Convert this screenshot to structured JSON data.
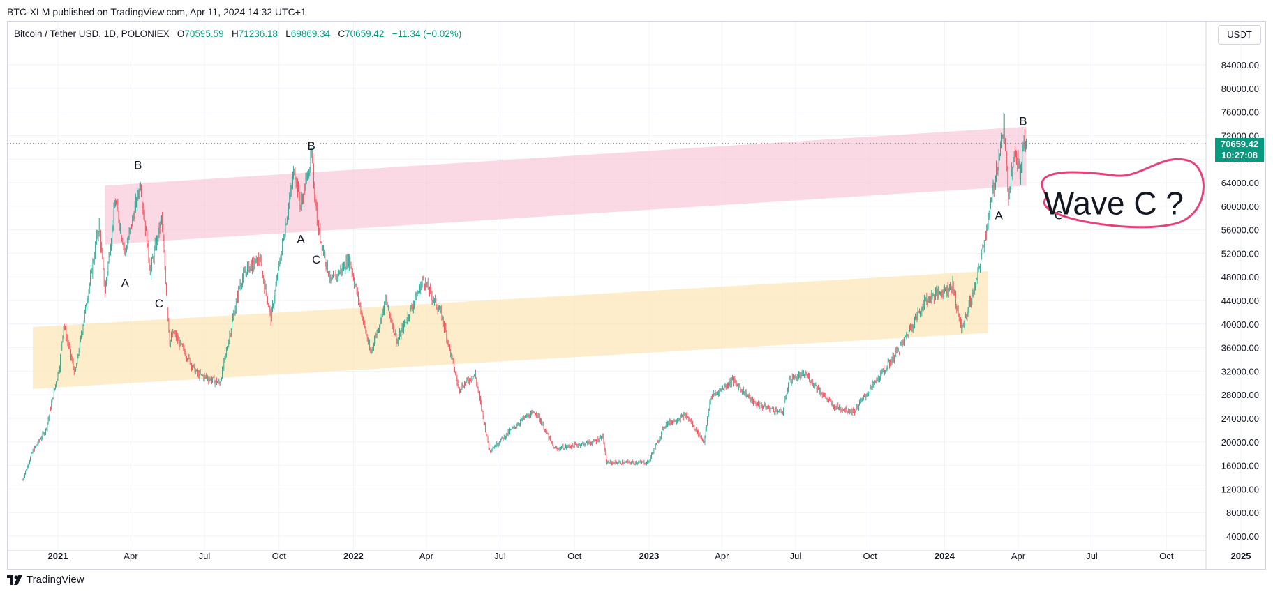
{
  "header": {
    "published": "BTC-XLM published on TradingView.com, Apr 11, 2024 14:32 UTC+1"
  },
  "symbol": {
    "name": "Bitcoin / Tether USD, 1D, POLONIEX",
    "open_label": "O",
    "open": "70595.59",
    "high_label": "H",
    "high": "71236.18",
    "low_label": "L",
    "low": "69869.34",
    "close_label": "C",
    "close": "70659.42",
    "change": "−11.34 (−0.02%)"
  },
  "currency_button": "USDT",
  "price_tag": {
    "price": "70659.42",
    "countdown": "10:27:08"
  },
  "footer": {
    "brand": "TradingView"
  },
  "colors": {
    "up": "#089981",
    "down": "#f23645",
    "pink_channel": "#f8c8d8",
    "orange_channel": "#fde5b5",
    "marker": "#e8407a",
    "price_line": "#089981"
  },
  "chart_data": {
    "type": "candlestick",
    "title": "Bitcoin / Tether USD, 1D, POLONIEX",
    "ylabel": "USDT",
    "ylim": [
      2000,
      88000
    ],
    "y_ticks": [
      "84000.00",
      "80000.00",
      "76000.00",
      "72000.00",
      "68000.00",
      "64000.00",
      "60000.00",
      "56000.00",
      "52000.00",
      "48000.00",
      "44000.00",
      "40000.00",
      "36000.00",
      "32000.00",
      "28000.00",
      "24000.00",
      "20000.00",
      "16000.00",
      "12000.00",
      "8000.00",
      "4000.00"
    ],
    "x_ticks": [
      {
        "label": "2021",
        "date": "2021-01-01",
        "bold": true
      },
      {
        "label": "Apr",
        "date": "2021-04-01"
      },
      {
        "label": "Jul",
        "date": "2021-07-01"
      },
      {
        "label": "Oct",
        "date": "2021-10-01"
      },
      {
        "label": "2022",
        "date": "2022-01-01",
        "bold": true
      },
      {
        "label": "Apr",
        "date": "2022-04-01"
      },
      {
        "label": "Jul",
        "date": "2022-07-01"
      },
      {
        "label": "Oct",
        "date": "2022-10-01"
      },
      {
        "label": "2023",
        "date": "2023-01-01",
        "bold": true
      },
      {
        "label": "Apr",
        "date": "2023-04-01"
      },
      {
        "label": "Jul",
        "date": "2023-07-01"
      },
      {
        "label": "Oct",
        "date": "2023-10-01"
      },
      {
        "label": "2024",
        "date": "2024-01-01",
        "bold": true
      },
      {
        "label": "Apr",
        "date": "2024-04-01"
      },
      {
        "label": "Jul",
        "date": "2024-07-01"
      },
      {
        "label": "Oct",
        "date": "2024-10-01"
      },
      {
        "label": "2025",
        "date": "2025-01-01",
        "bold": true
      }
    ],
    "last_price": 70659.42,
    "price_series": [
      [
        "2020-11-18",
        13500
      ],
      [
        "2020-12-01",
        18500
      ],
      [
        "2020-12-17",
        22000
      ],
      [
        "2021-01-03",
        33000
      ],
      [
        "2021-01-08",
        40000
      ],
      [
        "2021-01-22",
        31500
      ],
      [
        "2021-02-08",
        46000
      ],
      [
        "2021-02-21",
        57000
      ],
      [
        "2021-02-28",
        45500
      ],
      [
        "2021-03-13",
        61000
      ],
      [
        "2021-03-25",
        52000
      ],
      [
        "2021-04-13",
        64000
      ],
      [
        "2021-04-25",
        49000
      ],
      [
        "2021-05-09",
        58000
      ],
      [
        "2021-05-19",
        37000
      ],
      [
        "2021-05-24",
        38500
      ],
      [
        "2021-06-22",
        31500
      ],
      [
        "2021-07-20",
        30000
      ],
      [
        "2021-08-14",
        47000
      ],
      [
        "2021-08-23",
        49500
      ],
      [
        "2021-09-07",
        51000
      ],
      [
        "2021-09-21",
        41000
      ],
      [
        "2021-10-20",
        66500
      ],
      [
        "2021-10-28",
        60000
      ],
      [
        "2021-11-10",
        68500
      ],
      [
        "2021-11-18",
        56500
      ],
      [
        "2021-12-04",
        47000
      ],
      [
        "2021-12-27",
        51000
      ],
      [
        "2022-01-22",
        35000
      ],
      [
        "2022-02-10",
        44000
      ],
      [
        "2022-02-24",
        37000
      ],
      [
        "2022-03-28",
        47500
      ],
      [
        "2022-04-20",
        41500
      ],
      [
        "2022-05-11",
        29000
      ],
      [
        "2022-05-31",
        31500
      ],
      [
        "2022-06-18",
        18500
      ],
      [
        "2022-07-30",
        24000
      ],
      [
        "2022-08-15",
        25000
      ],
      [
        "2022-09-06",
        18800
      ],
      [
        "2022-10-25",
        20000
      ],
      [
        "2022-11-05",
        21000
      ],
      [
        "2022-11-09",
        16500
      ],
      [
        "2022-12-31",
        16500
      ],
      [
        "2023-01-21",
        23000
      ],
      [
        "2023-02-16",
        24500
      ],
      [
        "2023-03-10",
        20000
      ],
      [
        "2023-03-18",
        27500
      ],
      [
        "2023-04-14",
        30500
      ],
      [
        "2023-05-12",
        26500
      ],
      [
        "2023-06-15",
        25000
      ],
      [
        "2023-06-23",
        30500
      ],
      [
        "2023-07-13",
        31500
      ],
      [
        "2023-08-17",
        26000
      ],
      [
        "2023-09-11",
        25200
      ],
      [
        "2023-10-23",
        33000
      ],
      [
        "2023-11-09",
        36500
      ],
      [
        "2023-12-08",
        44000
      ],
      [
        "2024-01-11",
        46500
      ],
      [
        "2024-01-22",
        39000
      ],
      [
        "2024-02-10",
        47500
      ],
      [
        "2024-02-28",
        61000
      ],
      [
        "2024-03-14",
        73500
      ],
      [
        "2024-03-20",
        62000
      ],
      [
        "2024-03-27",
        70000
      ],
      [
        "2024-04-03",
        65500
      ],
      [
        "2024-04-08",
        71500
      ],
      [
        "2024-04-11",
        70659
      ]
    ],
    "channels": [
      {
        "name": "pink",
        "points": [
          [
            "2021-02-28",
            63500
          ],
          [
            "2024-04-11",
            73500
          ],
          [
            "2024-04-11",
            63500
          ],
          [
            "2021-02-28",
            53500
          ]
        ]
      },
      {
        "name": "orange",
        "points": [
          [
            "2020-12-01",
            39500
          ],
          [
            "2024-02-24",
            49000
          ],
          [
            "2024-02-24",
            38500
          ],
          [
            "2020-12-01",
            29000
          ]
        ]
      }
    ],
    "annotations": [
      {
        "text": "B",
        "date": "2021-04-10",
        "price": 67000
      },
      {
        "text": "A",
        "date": "2021-03-25",
        "price": 47000
      },
      {
        "text": "C",
        "date": "2021-05-06",
        "price": 43500
      },
      {
        "text": "B",
        "date": "2021-11-10",
        "price": 70300
      },
      {
        "text": "A",
        "date": "2021-10-28",
        "price": 54500
      },
      {
        "text": "C",
        "date": "2021-11-16",
        "price": 51000
      },
      {
        "text": "A",
        "date": "2024-03-08",
        "price": 58500
      },
      {
        "text": "B",
        "date": "2024-04-07",
        "price": 74500
      },
      {
        "text": "C",
        "date": "2024-05-21",
        "price": 58500
      }
    ],
    "callout": {
      "text": "Wave C ?",
      "date": "2024-07-28",
      "price": 60500
    }
  }
}
